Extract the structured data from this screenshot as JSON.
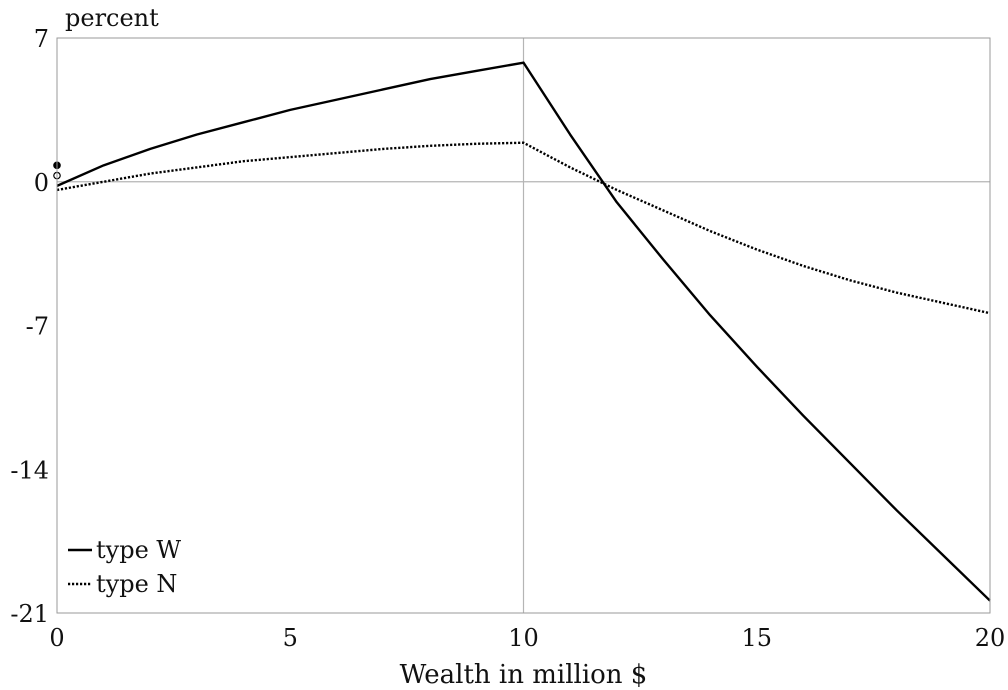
{
  "chart_data": {
    "type": "line",
    "title": "",
    "xlabel": "Wealth in million $",
    "ylabel": "percent",
    "xlim": [
      0,
      20
    ],
    "ylim": [
      -21,
      7
    ],
    "xticks": [
      0,
      5,
      10,
      15,
      20
    ],
    "yticks": [
      7,
      0,
      -7,
      -14,
      -21
    ],
    "xtick_labels": [
      "0",
      "5",
      "10",
      "15",
      "20"
    ],
    "ytick_labels": [
      "7",
      "0",
      "-7",
      "-14",
      "-21"
    ],
    "reference_lines": {
      "horizontal": 0,
      "vertical": 10
    },
    "grid": false,
    "legend_position": "bottom-left",
    "series": [
      {
        "name": "type W",
        "style": "solid",
        "color": "#000000",
        "x": [
          0,
          1,
          2,
          3,
          4,
          5,
          6,
          7,
          8,
          9,
          10,
          11,
          12,
          13,
          14,
          15,
          16,
          17,
          18,
          19,
          20
        ],
        "y": [
          -0.2,
          0.8,
          1.6,
          2.3,
          2.9,
          3.5,
          4.0,
          4.5,
          5.0,
          5.4,
          5.8,
          2.3,
          -1.0,
          -3.8,
          -6.5,
          -9.0,
          -11.4,
          -13.7,
          -16.0,
          -18.2,
          -20.4
        ]
      },
      {
        "name": "type N",
        "style": "dotted",
        "color": "#000000",
        "x": [
          0,
          1,
          2,
          3,
          4,
          5,
          6,
          7,
          8,
          9,
          10,
          11,
          12,
          13,
          14,
          15,
          16,
          17,
          18,
          19,
          20
        ],
        "y": [
          -0.4,
          0.0,
          0.4,
          0.7,
          1.0,
          1.2,
          1.4,
          1.6,
          1.75,
          1.85,
          1.9,
          0.7,
          -0.4,
          -1.4,
          -2.4,
          -3.3,
          -4.1,
          -4.8,
          -5.4,
          -5.9,
          -6.4
        ]
      }
    ],
    "markers": [
      {
        "x": 0,
        "y": 0.8,
        "fill": "filled"
      },
      {
        "x": 0,
        "y": 0.3,
        "fill": "open"
      }
    ]
  }
}
